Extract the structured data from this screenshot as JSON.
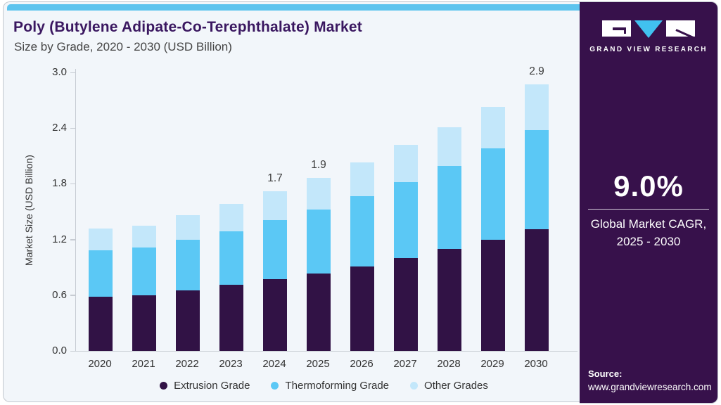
{
  "header": {
    "title": "Poly (Butylene Adipate-Co-Terephthalate) Market",
    "subtitle": "Size by Grade, 2020 - 2030 (USD Billion)"
  },
  "sidebar": {
    "logo_text": "GRAND VIEW RESEARCH",
    "cagr_value": "9.0%",
    "cagr_label_line1": "Global Market CAGR,",
    "cagr_label_line2": "2025 - 2030",
    "source_label": "Source:",
    "source_url": "www.grandviewresearch.com"
  },
  "chart_data": {
    "type": "bar",
    "stacked": true,
    "title": "Poly (Butylene Adipate-Co-Terephthalate) Market Size by Grade, 2020 - 2030 (USD Billion)",
    "categories": [
      "2020",
      "2021",
      "2022",
      "2023",
      "2024",
      "2025",
      "2026",
      "2027",
      "2028",
      "2029",
      "2030"
    ],
    "series": [
      {
        "name": "Extrusion Grade",
        "color": "#311245",
        "values": [
          0.58,
          0.6,
          0.65,
          0.71,
          0.77,
          0.83,
          0.91,
          1.0,
          1.1,
          1.2,
          1.31
        ]
      },
      {
        "name": "Thermoforming Grade",
        "color": "#5bc8f5",
        "values": [
          0.5,
          0.51,
          0.55,
          0.58,
          0.64,
          0.69,
          0.76,
          0.82,
          0.89,
          0.98,
          1.07
        ]
      },
      {
        "name": "Other Grades",
        "color": "#c3e7fa",
        "values": [
          0.24,
          0.24,
          0.26,
          0.29,
          0.31,
          0.34,
          0.36,
          0.4,
          0.42,
          0.45,
          0.49
        ]
      }
    ],
    "bar_labels": {
      "2024": "1.7",
      "2025": "1.9",
      "2030": "2.9"
    },
    "xlabel": "",
    "ylabel": "Market Size (USD Billion)",
    "yticks": [
      "0.0",
      "0.6",
      "1.2",
      "1.8",
      "2.4",
      "3.0"
    ],
    "ylim": [
      0.0,
      3.0
    ],
    "grid": false,
    "legend_position": "bottom"
  },
  "colors": {
    "card_background": "#f2f6fa",
    "top_strip": "#5ec4ee",
    "title_text": "#3a1760",
    "axis_line": "#c6cbd2",
    "sidebar_background": "#37114b",
    "logo_triangle": "#41c1f0"
  }
}
